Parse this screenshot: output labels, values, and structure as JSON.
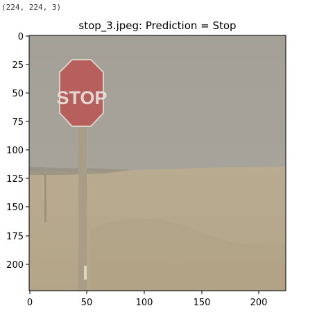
{
  "cell_output": {
    "text": "(224, 224, 3)"
  },
  "figure": {
    "title": "stop_3.jpeg: Prediction = Stop",
    "sign_text": "STOP",
    "x_ticks": [
      "0",
      "50",
      "100",
      "150",
      "200"
    ],
    "y_ticks": [
      "0",
      "25",
      "50",
      "75",
      "100",
      "125",
      "150",
      "175",
      "200"
    ],
    "colors": {
      "sky": "#a7a49c",
      "ground": "#b9ab8e",
      "sign": "#b45d5a",
      "pole": "#a59a84"
    }
  }
}
